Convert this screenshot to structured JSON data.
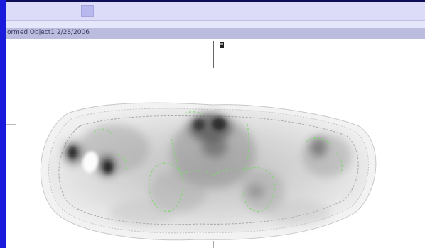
{
  "window": {
    "title": "ormed Object1 2/28/2006"
  },
  "toolbar": {
    "button_icon": "tool-square-icon"
  },
  "viewer": {
    "marker_icon": "orientation-marker-icon",
    "crosshair_icon": "crosshair-icon",
    "image_icon": "axial-scan-image"
  },
  "colors": {
    "frame_blue": "#1a1adc",
    "toolbar": "#dcdcf8",
    "title_bar": "#bcbcde",
    "contour_green": "#7fd86e"
  }
}
